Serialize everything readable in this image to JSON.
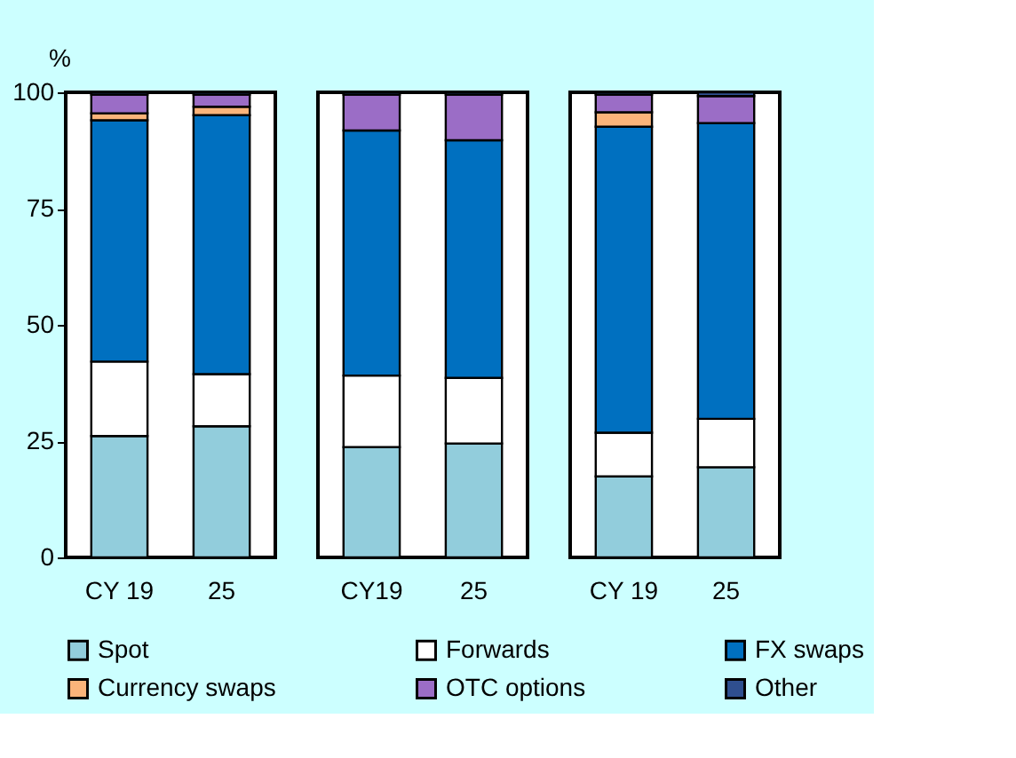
{
  "chart_data": [
    {
      "type": "bar",
      "stacked": true,
      "ylabel": "%",
      "categories": [
        "CY 19",
        "25"
      ],
      "ylim": [
        0,
        100
      ],
      "yticks": [
        0,
        25,
        50,
        75,
        100
      ],
      "grid": false,
      "legend": "bottom",
      "series": [
        {
          "name": "Spot",
          "color": "#92cddc",
          "values": [
            26.1,
            28.2
          ]
        },
        {
          "name": "Forwards",
          "color": "#ffffff",
          "values": [
            16.0,
            11.2
          ]
        },
        {
          "name": "FX swaps",
          "color": "#0070c0",
          "values": [
            51.9,
            55.7
          ]
        },
        {
          "name": "Currency swaps",
          "color": "#fbb47a",
          "values": [
            1.5,
            1.8
          ]
        },
        {
          "name": "OTC options",
          "color": "#9b6dc6",
          "values": [
            4.0,
            2.6
          ]
        },
        {
          "name": "Other",
          "color": "#2f4f8f",
          "values": [
            0.5,
            0.5
          ]
        }
      ]
    },
    {
      "type": "bar",
      "stacked": true,
      "categories": [
        "CY19",
        "25"
      ],
      "ylim": [
        0,
        100
      ],
      "grid": false,
      "legend": "bottom",
      "tick_labels": "x",
      "series": [
        {
          "name": "Spot",
          "color": "#92cddc",
          "values": [
            23.7,
            24.5
          ]
        },
        {
          "name": "Forwards",
          "color": "#ffffff",
          "values": [
            15.4,
            14.1
          ]
        },
        {
          "name": "FX swaps",
          "color": "#0070c0",
          "values": [
            52.7,
            51.1
          ]
        },
        {
          "name": "Currency swaps",
          "color": "#fbb47a",
          "values": [
            null,
            null
          ]
        },
        {
          "name": "OTC options",
          "color": "#9b6dc6",
          "values": [
            7.7,
            9.8
          ]
        },
        {
          "name": "Other",
          "color": "#2f4f8f",
          "values": [
            0.5,
            0.5
          ]
        }
      ]
    },
    {
      "type": "bar",
      "stacked": true,
      "categories": [
        "CY 19",
        "25"
      ],
      "ylim": [
        0,
        100
      ],
      "grid": false,
      "legend": "bottom",
      "tick_labels": "x",
      "series": [
        {
          "name": "Spot",
          "color": "#92cddc",
          "values": [
            17.4,
            19.4
          ]
        },
        {
          "name": "Forwards",
          "color": "#ffffff",
          "values": [
            9.4,
            10.4
          ]
        },
        {
          "name": "FX swaps",
          "color": "#0070c0",
          "values": [
            65.8,
            63.6
          ]
        },
        {
          "name": "Currency swaps",
          "color": "#fbb47a",
          "values": [
            3.1,
            null
          ]
        },
        {
          "name": "OTC options",
          "color": "#9b6dc6",
          "values": [
            3.8,
            5.8
          ]
        },
        {
          "name": "Other",
          "color": "#2f4f8f",
          "values": [
            0.5,
            0.8
          ]
        }
      ]
    }
  ]
}
